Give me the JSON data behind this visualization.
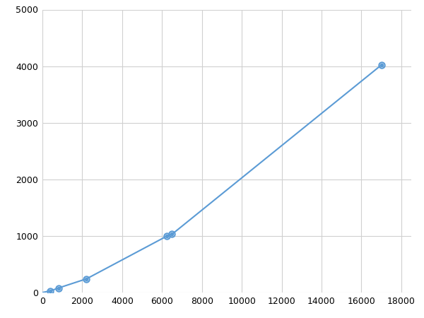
{
  "x": [
    0,
    400,
    800,
    2200,
    6250,
    6500,
    17000
  ],
  "y": [
    0,
    30,
    80,
    240,
    1000,
    1030,
    4020
  ],
  "line_color": "#5b9bd5",
  "marker_color": "#5b9bd5",
  "marker_size": 6,
  "line_width": 1.5,
  "xlim": [
    0,
    18500
  ],
  "ylim": [
    0,
    5000
  ],
  "xticks": [
    0,
    2000,
    4000,
    6000,
    8000,
    10000,
    12000,
    14000,
    16000,
    18000
  ],
  "yticks": [
    0,
    1000,
    2000,
    3000,
    4000,
    5000
  ],
  "grid": true,
  "grid_color": "#d0d0d0",
  "background_color": "#ffffff",
  "figure_background": "#ffffff",
  "figsize": [
    6.0,
    4.5
  ],
  "dpi": 100
}
